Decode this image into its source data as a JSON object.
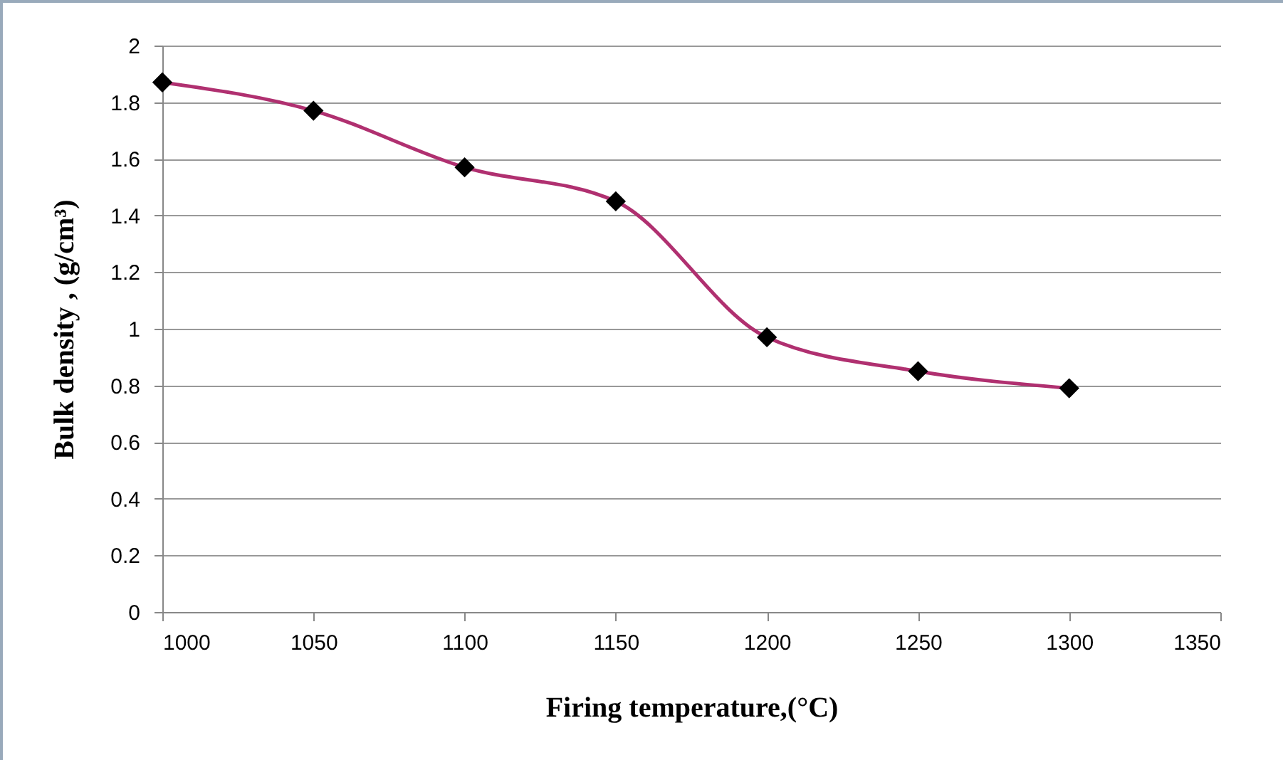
{
  "chart_data": {
    "type": "line",
    "xlabel": "Firing temperature,(°C)",
    "ylabel": "Bulk density , (g/cm³)",
    "x": [
      1000,
      1050,
      1100,
      1150,
      1200,
      1250,
      1300
    ],
    "series": [
      {
        "color": "#b03070",
        "values": [
          1.87,
          1.77,
          1.57,
          1.45,
          0.97,
          0.85,
          0.79
        ]
      }
    ],
    "xlim": [
      1000,
      1350
    ],
    "xticks": [
      1000,
      1050,
      1100,
      1150,
      1200,
      1250,
      1300,
      1350
    ],
    "ylim": [
      0,
      2
    ],
    "yticks": [
      0,
      0.2,
      0.4,
      0.6,
      0.8,
      1,
      1.2,
      1.4,
      1.6,
      1.8,
      2
    ],
    "grid": "y",
    "marker": "diamond"
  }
}
